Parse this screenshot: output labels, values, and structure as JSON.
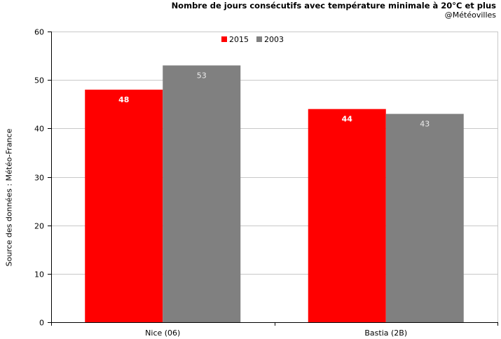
{
  "chart_data": {
    "type": "bar",
    "title": "Nombre de jours consécutifs avec température minimale à 20°C et plus",
    "subtitle": "@Météovilles",
    "ylabel": "Source des données : Météo-France",
    "categories": [
      "Nice (06)",
      "Bastia (2B)"
    ],
    "series": [
      {
        "name": "2015",
        "color": "#ff0000",
        "label_color": "#ffffff",
        "values": [
          48,
          44
        ]
      },
      {
        "name": "2003",
        "color": "#808080",
        "label_color": "#ececec",
        "values": [
          53,
          43
        ]
      }
    ],
    "ylim": [
      0,
      60
    ],
    "yticks": [
      "0",
      "10",
      "20",
      "30",
      "40",
      "50",
      "60"
    ],
    "grid": true,
    "legend": "top-center"
  }
}
